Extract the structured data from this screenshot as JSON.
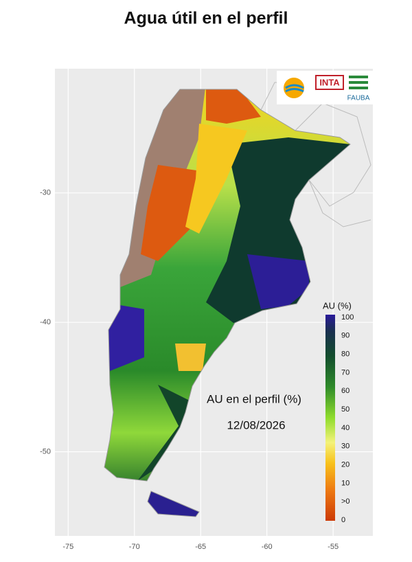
{
  "title": "Agua útil en el perfil",
  "map": {
    "xlim": [
      -76,
      -52
    ],
    "ylim": [
      -56.5,
      -20.4
    ],
    "xticks": [
      -75,
      -70,
      -65,
      -60,
      -55
    ],
    "yticks": [
      -30,
      -40,
      -50
    ],
    "annotation": "AU en el perfil (%)",
    "date": "12/08/2026",
    "logos": [
      "INTA",
      "FAUBA"
    ],
    "legend": {
      "title": "AU (%)",
      "labels": [
        "100",
        "90",
        "80",
        "70",
        "60",
        "50",
        "40",
        "30",
        "20",
        "10",
        ">0",
        "0"
      ]
    }
  }
}
